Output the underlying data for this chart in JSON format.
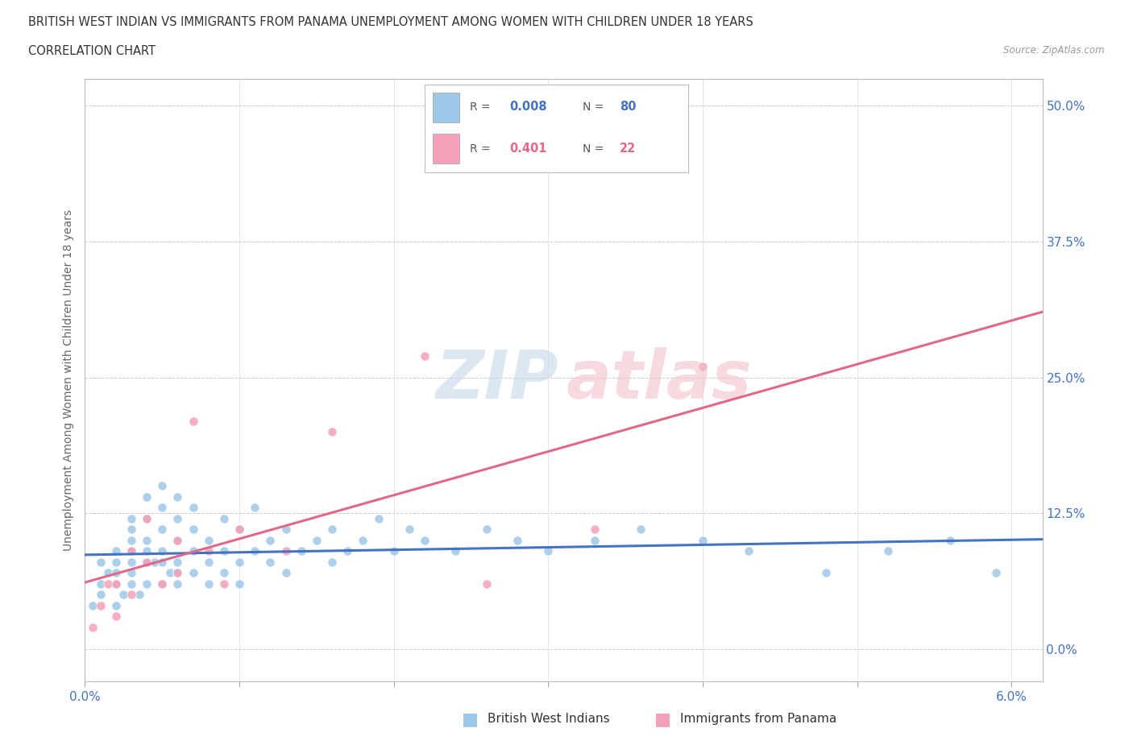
{
  "title_line1": "BRITISH WEST INDIAN VS IMMIGRANTS FROM PANAMA UNEMPLOYMENT AMONG WOMEN WITH CHILDREN UNDER 18 YEARS",
  "title_line2": "CORRELATION CHART",
  "source": "Source: ZipAtlas.com",
  "ylabel": "Unemployment Among Women with Children Under 18 years",
  "xlim": [
    0.0,
    0.062
  ],
  "ylim": [
    -0.03,
    0.525
  ],
  "yticks": [
    0.0,
    0.125,
    0.25,
    0.375,
    0.5
  ],
  "ytick_labels": [
    "0.0%",
    "12.5%",
    "25.0%",
    "37.5%",
    "50.0%"
  ],
  "xticks": [
    0.0,
    0.01,
    0.02,
    0.03,
    0.04,
    0.05,
    0.06
  ],
  "xtick_labels": [
    "0.0%",
    "",
    "",
    "",
    "",
    "",
    "6.0%"
  ],
  "color_bwi": "#9ec8e8",
  "color_pan": "#f4a0b8",
  "color_bwi_line": "#4472c4",
  "color_pan_line": "#e06888",
  "bwi_scatter_x": [
    0.0005,
    0.001,
    0.001,
    0.001,
    0.0015,
    0.002,
    0.002,
    0.002,
    0.002,
    0.002,
    0.0025,
    0.003,
    0.003,
    0.003,
    0.003,
    0.003,
    0.003,
    0.003,
    0.0035,
    0.004,
    0.004,
    0.004,
    0.004,
    0.004,
    0.004,
    0.0045,
    0.005,
    0.005,
    0.005,
    0.005,
    0.005,
    0.005,
    0.0055,
    0.006,
    0.006,
    0.006,
    0.006,
    0.006,
    0.006,
    0.007,
    0.007,
    0.007,
    0.007,
    0.008,
    0.008,
    0.008,
    0.009,
    0.009,
    0.009,
    0.01,
    0.01,
    0.01,
    0.011,
    0.011,
    0.012,
    0.012,
    0.013,
    0.013,
    0.014,
    0.015,
    0.016,
    0.016,
    0.017,
    0.018,
    0.019,
    0.02,
    0.021,
    0.022,
    0.024,
    0.026,
    0.028,
    0.03,
    0.033,
    0.036,
    0.04,
    0.043,
    0.048,
    0.052,
    0.056,
    0.059
  ],
  "bwi_scatter_y": [
    0.04,
    0.06,
    0.08,
    0.05,
    0.07,
    0.04,
    0.08,
    0.07,
    0.09,
    0.06,
    0.05,
    0.1,
    0.08,
    0.12,
    0.06,
    0.09,
    0.07,
    0.11,
    0.05,
    0.1,
    0.14,
    0.08,
    0.12,
    0.06,
    0.09,
    0.08,
    0.11,
    0.08,
    0.13,
    0.06,
    0.15,
    0.09,
    0.07,
    0.1,
    0.12,
    0.08,
    0.14,
    0.07,
    0.06,
    0.09,
    0.11,
    0.07,
    0.13,
    0.08,
    0.1,
    0.06,
    0.09,
    0.12,
    0.07,
    0.11,
    0.08,
    0.06,
    0.09,
    0.13,
    0.1,
    0.08,
    0.11,
    0.07,
    0.09,
    0.1,
    0.08,
    0.11,
    0.09,
    0.1,
    0.12,
    0.09,
    0.11,
    0.1,
    0.09,
    0.11,
    0.1,
    0.09,
    0.1,
    0.11,
    0.1,
    0.09,
    0.07,
    0.09,
    0.1,
    0.07
  ],
  "pan_scatter_x": [
    0.0005,
    0.001,
    0.0015,
    0.002,
    0.002,
    0.003,
    0.003,
    0.004,
    0.004,
    0.005,
    0.006,
    0.006,
    0.007,
    0.008,
    0.009,
    0.01,
    0.013,
    0.016,
    0.022,
    0.026,
    0.033,
    0.04
  ],
  "pan_scatter_y": [
    0.02,
    0.04,
    0.06,
    0.03,
    0.06,
    0.05,
    0.09,
    0.08,
    0.12,
    0.06,
    0.1,
    0.07,
    0.21,
    0.09,
    0.06,
    0.11,
    0.09,
    0.2,
    0.27,
    0.06,
    0.11,
    0.26
  ]
}
